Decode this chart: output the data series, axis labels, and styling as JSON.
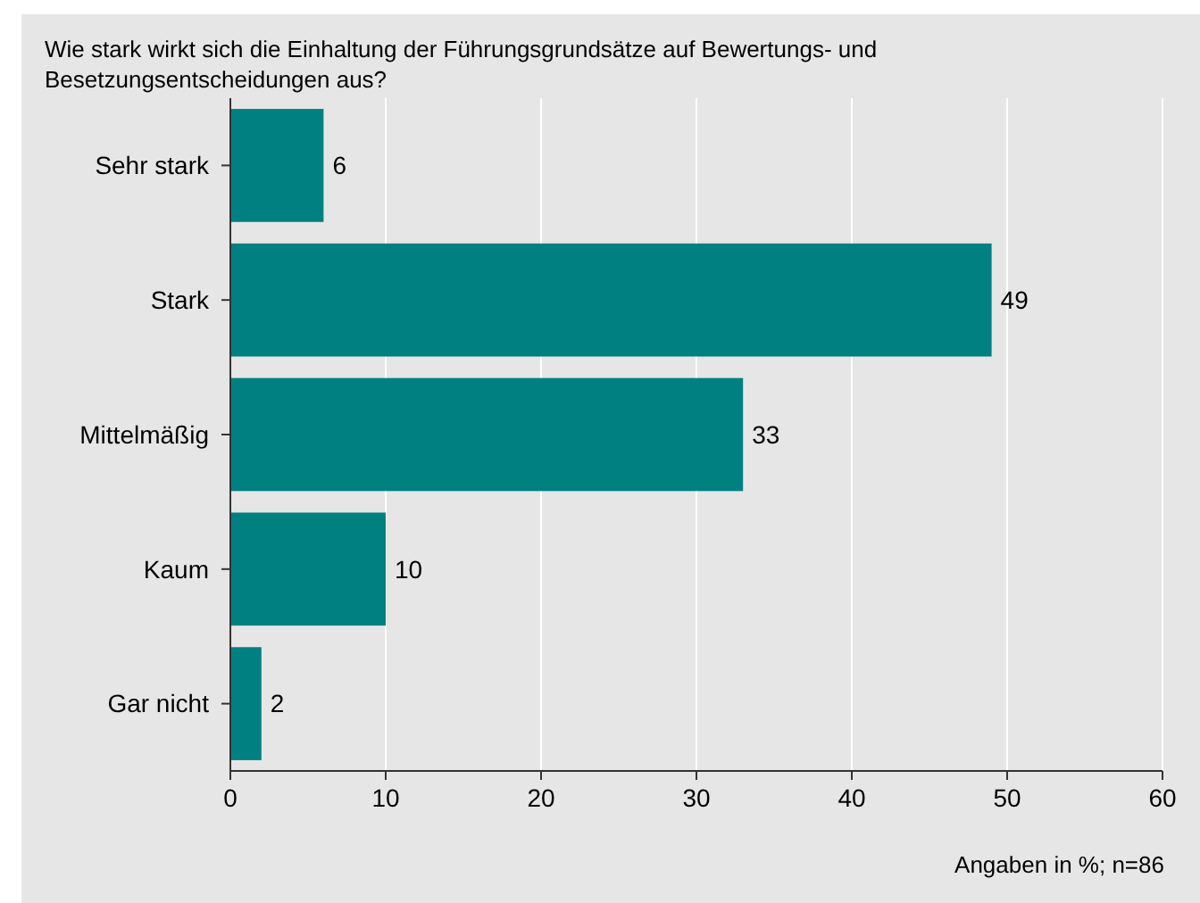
{
  "chart_data": {
    "type": "bar",
    "orientation": "horizontal",
    "title": "Wie stark wirkt sich die Einhaltung der Führungsgrundsätze auf Bewertungs- und Besetzungsentscheidungen aus?",
    "categories": [
      "Sehr stark",
      "Stark",
      "Mittelmäßig",
      "Kaum",
      "Gar nicht"
    ],
    "values": [
      6,
      49,
      33,
      10,
      2
    ],
    "color": "#008080",
    "xlim": [
      0,
      60
    ],
    "xticks": [
      0,
      10,
      20,
      30,
      40,
      50,
      60
    ],
    "grid": "x",
    "data_labels": true,
    "annotations": [
      "Angaben in %; n=86"
    ]
  }
}
